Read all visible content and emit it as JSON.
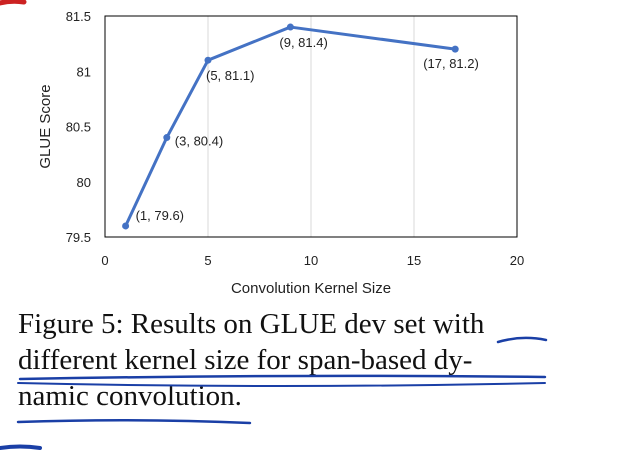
{
  "chart_data": {
    "type": "line",
    "title": "",
    "xlabel": "Convolution Kernel Size",
    "ylabel": "GLUE Score",
    "xlim": [
      0,
      20
    ],
    "ylim": [
      79.5,
      81.5
    ],
    "xticks": [
      "0",
      "5",
      "10",
      "15",
      "20"
    ],
    "yticks": [
      "79.5",
      "80",
      "80.5",
      "81",
      "81.5"
    ],
    "grid": "vertical",
    "series": [
      {
        "x": [
          1,
          3,
          5,
          9,
          17
        ],
        "y": [
          79.6,
          80.4,
          81.1,
          81.4,
          81.2
        ],
        "labels": [
          "(1,   79.6)",
          "(3, 80.4)",
          "(5, 81.1)",
          "(9, 81.4)",
          "(17, 81.2)"
        ]
      }
    ],
    "line_color": "#4472c4"
  },
  "caption": {
    "line1": "Figure 5: Results on GLUE dev set with",
    "line2": "different kernel size for span-based dy-",
    "line3": "namic convolution."
  },
  "annotation_color": "#1a3fa6"
}
